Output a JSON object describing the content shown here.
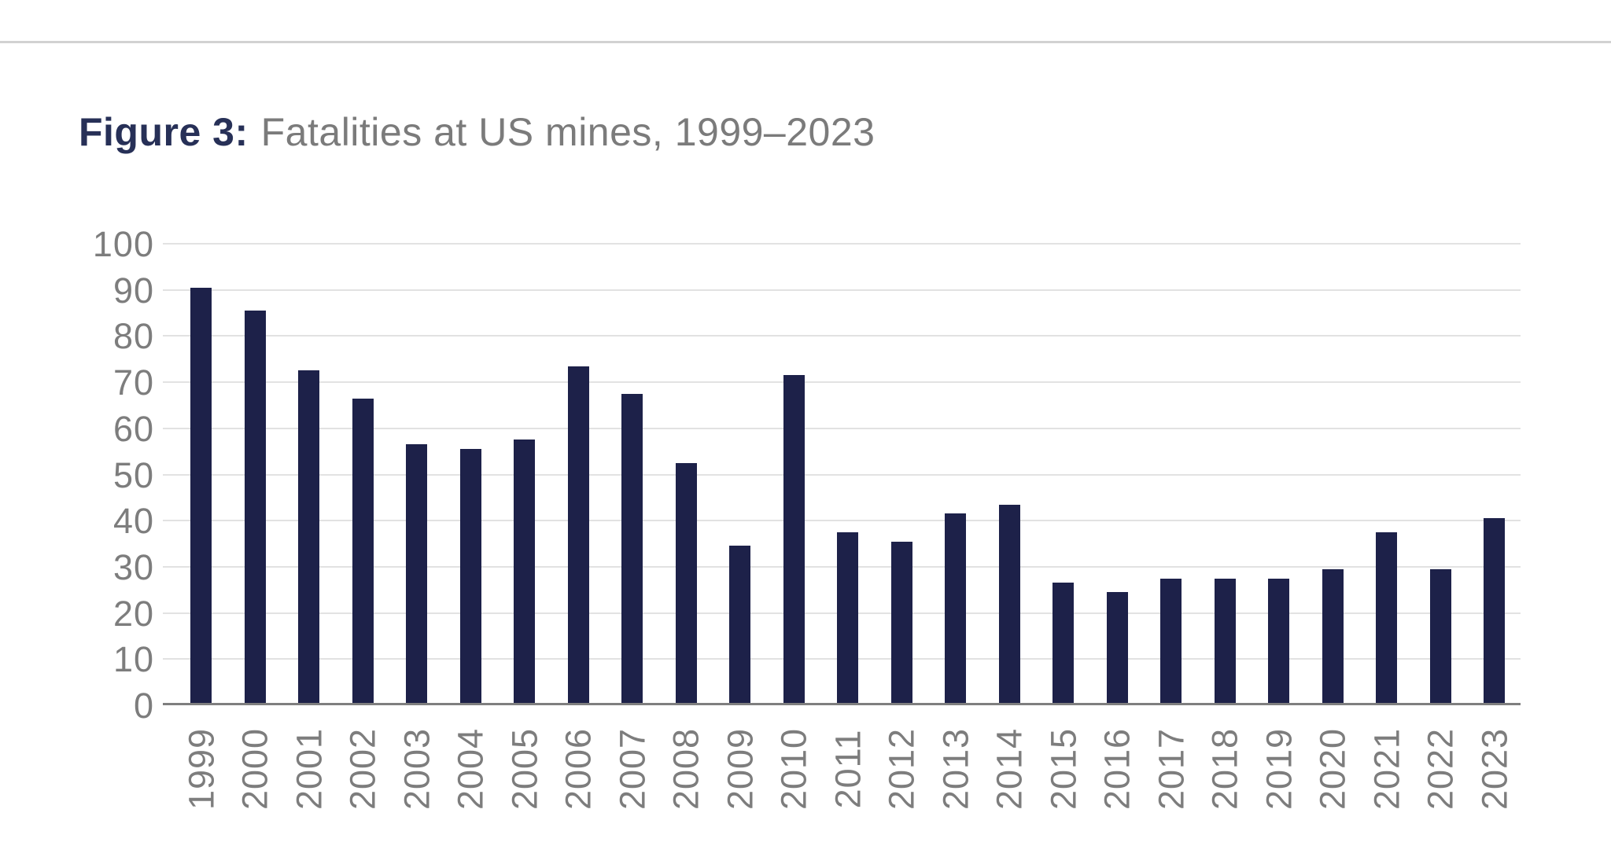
{
  "page": {
    "title_label": "Figure 3:",
    "title_rest": "Fatalities at US mines, 1999–2023"
  },
  "theme": {
    "background": "#ffffff",
    "bar_color": "#1d2149",
    "gridline_color": "#e2e2e2",
    "axis_line_color": "#7f7f7f",
    "tick_label_color": "#7d7d7d",
    "title_label_color": "#273057",
    "title_text_color": "#7b7b7b",
    "top_divider_color": "#d2d2d2"
  },
  "chart_data": {
    "type": "bar",
    "title": "Figure 3: Fatalities at US mines, 1999–2023",
    "categories": [
      "1999",
      "2000",
      "2001",
      "2002",
      "2003",
      "2004",
      "2005",
      "2006",
      "2007",
      "2008",
      "2009",
      "2010",
      "2011",
      "2012",
      "2013",
      "2014",
      "2015",
      "2016",
      "2017",
      "2018",
      "2019",
      "2020",
      "2021",
      "2022",
      "2023"
    ],
    "values": [
      90,
      85,
      72,
      66,
      56,
      55,
      57,
      73,
      67,
      52,
      34,
      71,
      37,
      35,
      41,
      43,
      26,
      24,
      27,
      27,
      27,
      29,
      37,
      29,
      40
    ],
    "xlabel": "",
    "ylabel": "",
    "ylim": [
      0,
      100
    ],
    "yticks": [
      0,
      10,
      20,
      30,
      40,
      50,
      60,
      70,
      80,
      90,
      100
    ],
    "grid": "horizontal",
    "legend": "none",
    "bar_color_name": "navy"
  }
}
